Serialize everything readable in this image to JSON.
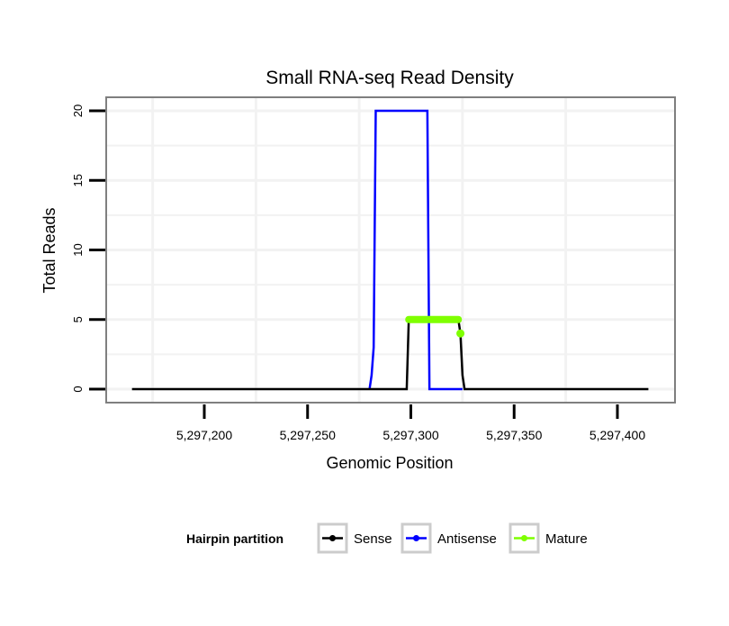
{
  "chart_data": {
    "type": "line",
    "title": "Small RNA-seq Read Density",
    "xlabel": "Genomic Position",
    "ylabel": "Total Reads",
    "xlim": [
      5297162,
      5297419
    ],
    "ylim": [
      -0.9,
      21
    ],
    "x_ticks": [
      5297200,
      5297250,
      5297300,
      5297350,
      5297400
    ],
    "x_tick_labels": [
      "5,297,200",
      "5,297,250",
      "5,297,300",
      "5,297,350",
      "5,297,400"
    ],
    "x_grid": [
      5297175,
      5297225,
      5297275,
      5297325,
      5297375
    ],
    "y_ticks": [
      0,
      5,
      10,
      15,
      20
    ],
    "y_tick_labels": [
      "0",
      "5",
      "10",
      "15",
      "20"
    ],
    "y_grid": [
      0,
      2.5,
      5,
      7.5,
      10,
      12.5,
      15,
      17.5,
      20
    ],
    "grid": true,
    "legend": {
      "title": "Hairpin partition",
      "placement": "bottom"
    },
    "series": [
      {
        "name": "Sense",
        "color": "#000000",
        "points": [
          [
            5297165,
            0
          ],
          [
            5297298,
            0
          ],
          [
            5297299,
            5
          ],
          [
            5297323,
            5
          ],
          [
            5297324,
            4
          ],
          [
            5297325,
            1
          ],
          [
            5297326,
            0
          ],
          [
            5297415,
            0
          ]
        ]
      },
      {
        "name": "Antisense",
        "color": "#0000ff",
        "points": [
          [
            5297280,
            0
          ],
          [
            5297281,
            1
          ],
          [
            5297282,
            3
          ],
          [
            5297283,
            20
          ],
          [
            5297308,
            20
          ],
          [
            5297309,
            0
          ],
          [
            5297325,
            0
          ]
        ]
      },
      {
        "name": "Mature",
        "color": "#7fff00",
        "points": [
          [
            5297299,
            5
          ],
          [
            5297300,
            5
          ],
          [
            5297302,
            5
          ],
          [
            5297304,
            5
          ],
          [
            5297306,
            5
          ],
          [
            5297308,
            5
          ],
          [
            5297310,
            5
          ],
          [
            5297312,
            5
          ],
          [
            5297314,
            5
          ],
          [
            5297316,
            5
          ],
          [
            5297318,
            5
          ],
          [
            5297320,
            5
          ],
          [
            5297322,
            5
          ],
          [
            5297323,
            5
          ]
        ],
        "extra_points": [
          [
            5297324,
            4
          ]
        ]
      }
    ]
  }
}
